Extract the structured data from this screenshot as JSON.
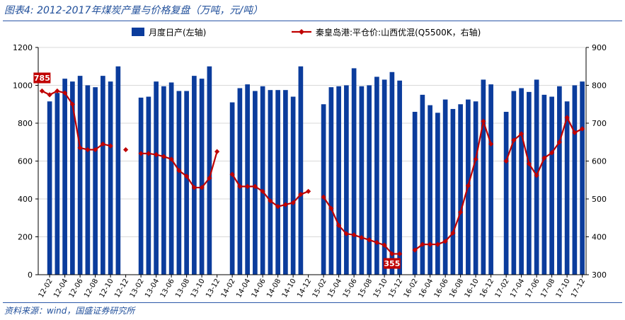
{
  "title": "图表4:  2012-2017年煤炭产量与价格复盘（万吨，元/吨）",
  "source": "资料来源：wind，国盛证券研究所",
  "colors": {
    "bar": "#0b3c9c",
    "line": "#c00000",
    "text": "#1f4e9a",
    "axis": "#000000"
  },
  "chart_data": {
    "type": "bar+line",
    "legend": {
      "bar_label": "月度日产(左轴)",
      "line_label": "秦皇岛港:平仓价:山西优混(Q5500K，右轴)",
      "placement": "top"
    },
    "y_left": {
      "ticks": [
        "0",
        "200",
        "400",
        "600",
        "800",
        "1000",
        "1200"
      ],
      "lim": [
        0,
        1200
      ]
    },
    "y_right": {
      "ticks": [
        "300",
        "400",
        "500",
        "600",
        "700",
        "800",
        "900"
      ],
      "lim": [
        300,
        900
      ]
    },
    "x_tick_labels": [
      "12-02",
      "12-04",
      "12-06",
      "12-08",
      "12-10",
      "12-12",
      "13-02",
      "13-04",
      "13-06",
      "13-08",
      "13-10",
      "13-12",
      "14-02",
      "14-04",
      "14-06",
      "14-08",
      "14-10",
      "14-12",
      "15-02",
      "15-04",
      "15-06",
      "15-08",
      "15-10",
      "15-12",
      "16-02",
      "16-04",
      "16-06",
      "16-08",
      "16-10",
      "16-12",
      "17-02",
      "17-04",
      "17-06",
      "17-08",
      "17-10",
      "17-12"
    ],
    "months": [
      "12-01",
      "12-02",
      "12-03",
      "12-04",
      "12-05",
      "12-06",
      "12-07",
      "12-08",
      "12-09",
      "12-10",
      "12-11",
      "12-12",
      "13-01",
      "13-02",
      "13-03",
      "13-04",
      "13-05",
      "13-06",
      "13-07",
      "13-08",
      "13-09",
      "13-10",
      "13-11",
      "13-12",
      "14-01",
      "14-02",
      "14-03",
      "14-04",
      "14-05",
      "14-06",
      "14-07",
      "14-08",
      "14-09",
      "14-10",
      "14-11",
      "14-12",
      "15-01",
      "15-02",
      "15-03",
      "15-04",
      "15-05",
      "15-06",
      "15-07",
      "15-08",
      "15-09",
      "15-10",
      "15-11",
      "15-12",
      "16-01",
      "16-02",
      "16-03",
      "16-04",
      "16-05",
      "16-06",
      "16-07",
      "16-08",
      "16-09",
      "16-10",
      "16-11",
      "16-12",
      "17-01",
      "17-02",
      "17-03",
      "17-04",
      "17-05",
      "17-06",
      "17-07",
      "17-08",
      "17-09",
      "17-10",
      "17-11",
      "17-12"
    ],
    "daily_output": [
      null,
      915,
      960,
      1035,
      1020,
      1050,
      1000,
      990,
      1050,
      1020,
      1100,
      null,
      null,
      935,
      940,
      1020,
      995,
      1015,
      970,
      970,
      1050,
      1035,
      1100,
      null,
      null,
      910,
      985,
      1005,
      970,
      995,
      975,
      975,
      975,
      940,
      1100,
      null,
      null,
      900,
      990,
      995,
      1000,
      1090,
      995,
      1000,
      1045,
      1030,
      1070,
      1025,
      null,
      860,
      950,
      895,
      855,
      925,
      875,
      900,
      925,
      915,
      1030,
      1005,
      null,
      860,
      970,
      985,
      965,
      1030,
      950,
      940,
      995,
      915,
      1000,
      1020
    ],
    "price": [
      785,
      775,
      785,
      780,
      750,
      635,
      630,
      630,
      645,
      640,
      null,
      630,
      null,
      620,
      620,
      617,
      612,
      605,
      575,
      560,
      530,
      530,
      555,
      625,
      null,
      565,
      533,
      533,
      533,
      520,
      495,
      480,
      485,
      490,
      512,
      520,
      null,
      505,
      475,
      430,
      408,
      405,
      398,
      392,
      385,
      378,
      355,
      355,
      null,
      365,
      380,
      380,
      380,
      388,
      410,
      465,
      535,
      605,
      705,
      645,
      null,
      600,
      655,
      672,
      593,
      562,
      608,
      622,
      650,
      715,
      675,
      685
    ],
    "data_labels": {
      "max": "785",
      "min": "355"
    }
  }
}
